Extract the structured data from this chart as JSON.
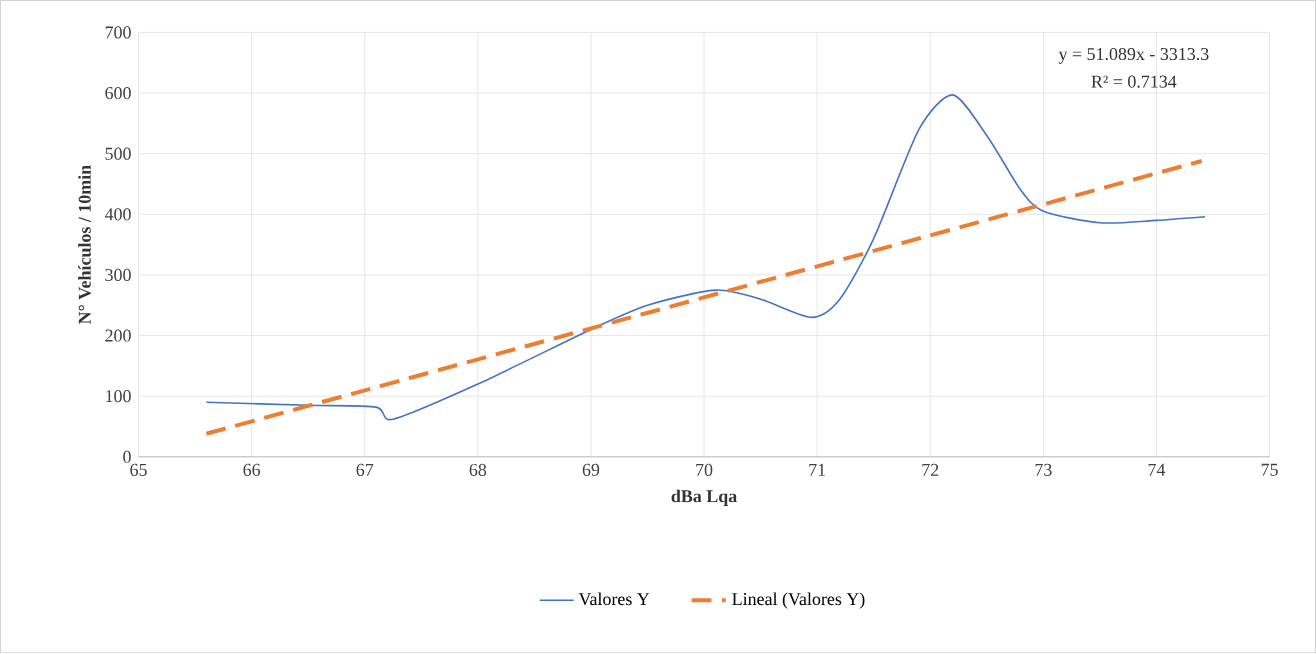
{
  "chart_data": {
    "type": "line",
    "xlabel": "dBa Lqa",
    "ylabel": "N° Vehículos / 10min",
    "xlim": [
      65,
      75
    ],
    "xticks": [
      65,
      66,
      67,
      68,
      69,
      70,
      71,
      72,
      73,
      74,
      75
    ],
    "ylim": [
      0,
      700
    ],
    "yticks": [
      0,
      100,
      200,
      300,
      400,
      500,
      600,
      700
    ],
    "grid": true,
    "legend": "bottom",
    "annotations": [
      "y = 51.089x - 3313.3",
      "R² = 0.7134"
    ],
    "series": [
      {
        "name": "Valores Y",
        "color": "#4472c4",
        "line_style": "solid",
        "x": [
          65.6,
          66.5,
          67.1,
          67.25,
          68,
          69,
          69.5,
          70.1,
          70.5,
          70.95,
          71.2,
          71.5,
          71.9,
          72.2,
          72.5,
          72.8,
          73.0,
          73.5,
          74.0,
          74.43
        ],
        "values": [
          90,
          85,
          82,
          62,
          120,
          210,
          250,
          275,
          260,
          230,
          260,
          360,
          540,
          597,
          530,
          440,
          405,
          386,
          390,
          396
        ]
      },
      {
        "name": "Lineal (Valores Y)",
        "color": "#ed7d31",
        "line_style": "dashed",
        "x": [
          65.6,
          74.4
        ],
        "values": [
          38,
          488
        ]
      }
    ]
  }
}
